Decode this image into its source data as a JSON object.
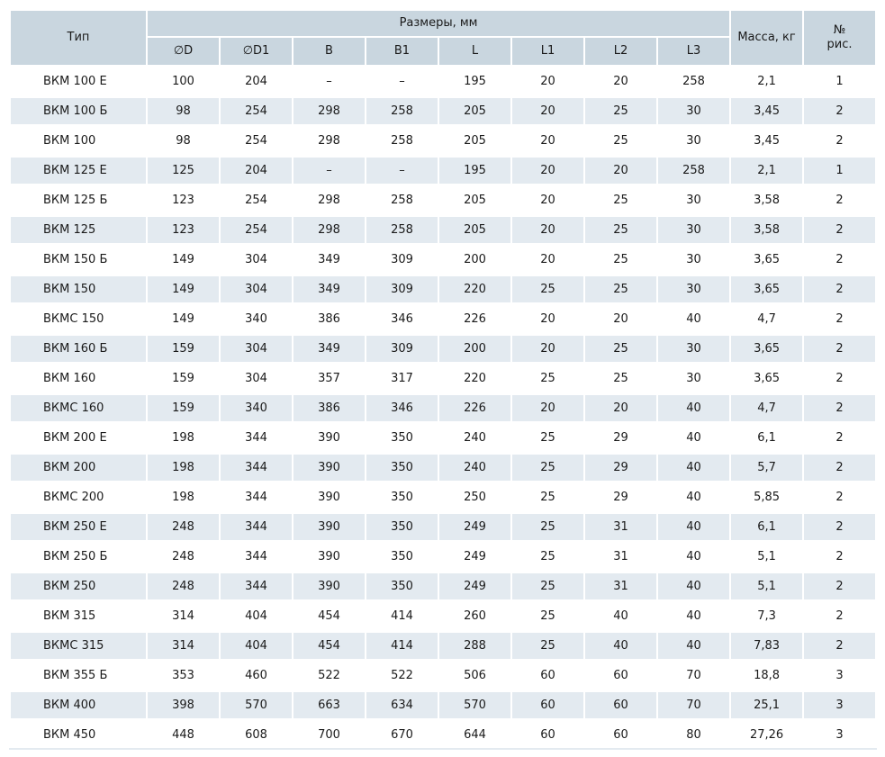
{
  "header": {
    "type": "Тип",
    "sizes": "Размеры, мм",
    "columns": [
      "∅D",
      "∅D1",
      "B",
      "B1",
      "L",
      "L1",
      "L2",
      "L3"
    ],
    "mass": "Масса, кг",
    "fig_line1": "№",
    "fig_line2": "рис."
  },
  "rows": [
    [
      "ВКМ 100 Е",
      "100",
      "204",
      "–",
      "–",
      "195",
      "20",
      "20",
      "258",
      "2,1",
      "1"
    ],
    [
      "ВКМ 100 Б",
      "98",
      "254",
      "298",
      "258",
      "205",
      "20",
      "25",
      "30",
      "3,45",
      "2"
    ],
    [
      "ВКМ 100",
      "98",
      "254",
      "298",
      "258",
      "205",
      "20",
      "25",
      "30",
      "3,45",
      "2"
    ],
    [
      "ВКМ 125 Е",
      "125",
      "204",
      "–",
      "–",
      "195",
      "20",
      "20",
      "258",
      "2,1",
      "1"
    ],
    [
      "ВКМ 125 Б",
      "123",
      "254",
      "298",
      "258",
      "205",
      "20",
      "25",
      "30",
      "3,58",
      "2"
    ],
    [
      "ВКМ 125",
      "123",
      "254",
      "298",
      "258",
      "205",
      "20",
      "25",
      "30",
      "3,58",
      "2"
    ],
    [
      "ВКМ 150 Б",
      "149",
      "304",
      "349",
      "309",
      "200",
      "20",
      "25",
      "30",
      "3,65",
      "2"
    ],
    [
      "ВКМ 150",
      "149",
      "304",
      "349",
      "309",
      "220",
      "25",
      "25",
      "30",
      "3,65",
      "2"
    ],
    [
      "ВКМС 150",
      "149",
      "340",
      "386",
      "346",
      "226",
      "20",
      "20",
      "40",
      "4,7",
      "2"
    ],
    [
      "ВКМ 160 Б",
      "159",
      "304",
      "349",
      "309",
      "200",
      "20",
      "25",
      "30",
      "3,65",
      "2"
    ],
    [
      "ВКМ 160",
      "159",
      "304",
      "357",
      "317",
      "220",
      "25",
      "25",
      "30",
      "3,65",
      "2"
    ],
    [
      "ВКМС 160",
      "159",
      "340",
      "386",
      "346",
      "226",
      "20",
      "20",
      "40",
      "4,7",
      "2"
    ],
    [
      "ВКМ 200 Е",
      "198",
      "344",
      "390",
      "350",
      "240",
      "25",
      "29",
      "40",
      "6,1",
      "2"
    ],
    [
      "ВКМ 200",
      "198",
      "344",
      "390",
      "350",
      "240",
      "25",
      "29",
      "40",
      "5,7",
      "2"
    ],
    [
      "ВКМС 200",
      "198",
      "344",
      "390",
      "350",
      "250",
      "25",
      "29",
      "40",
      "5,85",
      "2"
    ],
    [
      "ВКМ 250 Е",
      "248",
      "344",
      "390",
      "350",
      "249",
      "25",
      "31",
      "40",
      "6,1",
      "2"
    ],
    [
      "ВКМ 250 Б",
      "248",
      "344",
      "390",
      "350",
      "249",
      "25",
      "31",
      "40",
      "5,1",
      "2"
    ],
    [
      "ВКМ 250",
      "248",
      "344",
      "390",
      "350",
      "249",
      "25",
      "31",
      "40",
      "5,1",
      "2"
    ],
    [
      "ВКМ 315",
      "314",
      "404",
      "454",
      "414",
      "260",
      "25",
      "40",
      "40",
      "7,3",
      "2"
    ],
    [
      "ВКМС 315",
      "314",
      "404",
      "454",
      "414",
      "288",
      "25",
      "40",
      "40",
      "7,83",
      "2"
    ],
    [
      "ВКМ 355 Б",
      "353",
      "460",
      "522",
      "522",
      "506",
      "60",
      "60",
      "70",
      "18,8",
      "3"
    ],
    [
      "ВКМ 400",
      "398",
      "570",
      "663",
      "634",
      "570",
      "60",
      "60",
      "70",
      "25,1",
      "3"
    ],
    [
      "ВКМ 450",
      "448",
      "608",
      "700",
      "670",
      "644",
      "60",
      "60",
      "80",
      "27,26",
      "3"
    ]
  ]
}
